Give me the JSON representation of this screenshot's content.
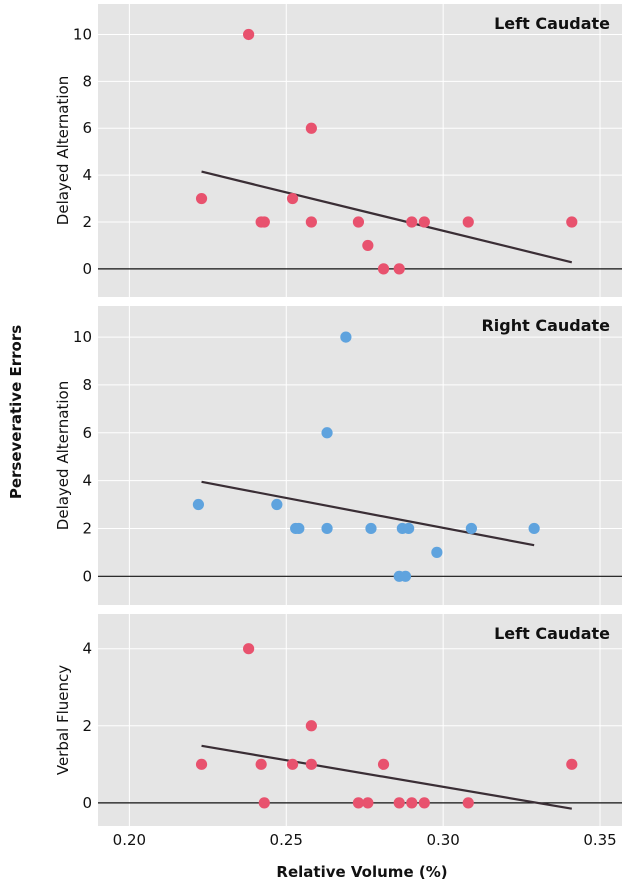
{
  "figure": {
    "shared_ylabel": "Perseverative Errors",
    "shared_xlabel": "Relative Volume (%)",
    "colors": {
      "panel_bg": "#e5e5e5",
      "grid": "#ffffff",
      "fit": "#3a2e35",
      "zero": "#111111"
    }
  },
  "chart_data": [
    {
      "type": "scatter",
      "title": "Left Caudate",
      "ylabel": "Delayed Alternation",
      "xlim": [
        0.19,
        0.357
      ],
      "ylim": [
        -1.2,
        11.3
      ],
      "xticks": [
        "0.20",
        "0.25",
        "0.30",
        "0.35"
      ],
      "yticks": [
        "0",
        "2",
        "4",
        "6",
        "8",
        "10"
      ],
      "point_color": "#e8526e",
      "x": [
        0.223,
        0.238,
        0.242,
        0.243,
        0.252,
        0.258,
        0.258,
        0.273,
        0.276,
        0.281,
        0.286,
        0.29,
        0.294,
        0.308,
        0.341
      ],
      "y": [
        3,
        10,
        2,
        2,
        3,
        6,
        2,
        2,
        1,
        0,
        0,
        2,
        2,
        2,
        2
      ],
      "fit": {
        "x": [
          0.223,
          0.341
        ],
        "y": [
          4.15,
          0.28
        ]
      }
    },
    {
      "type": "scatter",
      "title": "Right Caudate",
      "ylabel": "Delayed Alternation",
      "xlim": [
        0.19,
        0.357
      ],
      "ylim": [
        -1.2,
        11.3
      ],
      "xticks": [
        "0.20",
        "0.25",
        "0.30",
        "0.35"
      ],
      "yticks": [
        "0",
        "2",
        "4",
        "6",
        "8",
        "10"
      ],
      "point_color": "#5fa3de",
      "x": [
        0.222,
        0.247,
        0.253,
        0.254,
        0.263,
        0.263,
        0.269,
        0.277,
        0.286,
        0.287,
        0.288,
        0.289,
        0.298,
        0.309,
        0.329
      ],
      "y": [
        3,
        3,
        2,
        2,
        6,
        2,
        10,
        2,
        0,
        2,
        0,
        2,
        1,
        2,
        2
      ],
      "fit": {
        "x": [
          0.223,
          0.329
        ],
        "y": [
          3.95,
          1.3
        ]
      }
    },
    {
      "type": "scatter",
      "title": "Left Caudate",
      "ylabel": "Verbal Fluency",
      "xlim": [
        0.19,
        0.357
      ],
      "ylim": [
        -0.6,
        4.9
      ],
      "xticks": [
        "0.20",
        "0.25",
        "0.30",
        "0.35"
      ],
      "yticks": [
        "0",
        "2",
        "4"
      ],
      "point_color": "#e8526e",
      "x": [
        0.223,
        0.238,
        0.242,
        0.243,
        0.252,
        0.258,
        0.258,
        0.273,
        0.276,
        0.281,
        0.286,
        0.29,
        0.294,
        0.308,
        0.341
      ],
      "y": [
        1,
        4,
        1,
        0,
        1,
        2,
        1,
        0,
        0,
        1,
        0,
        0,
        0,
        0,
        1
      ],
      "fit": {
        "x": [
          0.223,
          0.341
        ],
        "y": [
          1.48,
          -0.15
        ]
      }
    }
  ]
}
